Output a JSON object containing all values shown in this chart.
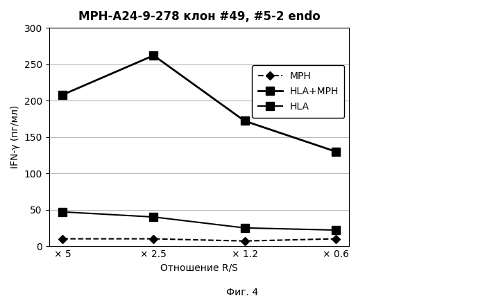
{
  "title": "МРН-А24-9-278 клон #49, #5-2 endo",
  "xlabel": "Отношение R/S",
  "ylabel": "IFN-γ (пг/мл)",
  "footnote": "Фиг. 4",
  "x_labels": [
    "× 5",
    "× 2.5",
    "× 1.2",
    "× 0.6"
  ],
  "x_values": [
    0,
    1,
    2,
    3
  ],
  "series": [
    {
      "name": "MPH",
      "values": [
        10,
        10,
        7,
        10
      ],
      "color": "#000000",
      "linestyle": "dashed",
      "marker": "D",
      "markersize": 6,
      "linewidth": 1.5
    },
    {
      "name": "HLA+MPH",
      "values": [
        208,
        262,
        172,
        130
      ],
      "color": "#000000",
      "linestyle": "solid",
      "marker": "s",
      "markersize": 8,
      "linewidth": 2.0
    },
    {
      "name": "HLA",
      "values": [
        47,
        40,
        25,
        22
      ],
      "color": "#000000",
      "linestyle": "solid",
      "marker": "s",
      "markersize": 8,
      "linewidth": 1.5
    }
  ],
  "ylim": [
    0,
    300
  ],
  "yticks": [
    0,
    50,
    100,
    150,
    200,
    250,
    300
  ],
  "background_color": "#ffffff",
  "plot_bg_color": "#ffffff",
  "grid_color": "#bbbbbb",
  "title_fontsize": 12,
  "axis_label_fontsize": 10,
  "tick_fontsize": 10,
  "legend_fontsize": 10
}
